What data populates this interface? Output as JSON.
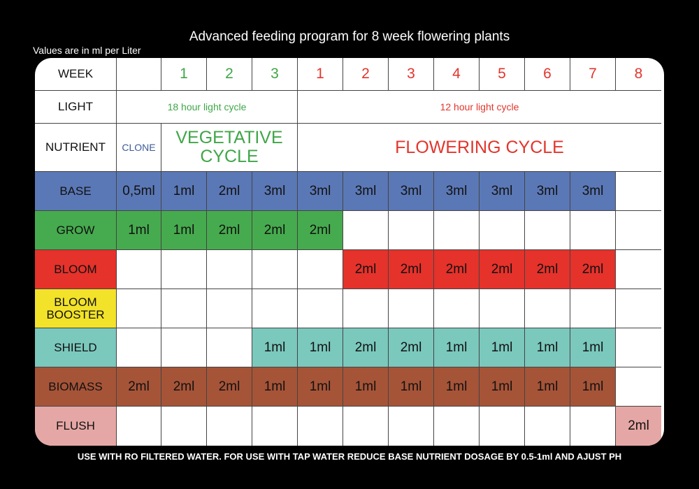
{
  "title": "Advanced feeding program for 8 week flowering plants",
  "subtitle": "Values  are in ml per Liter",
  "footer": "USE WITH RO FILTERED WATER. FOR USE WITH TAP WATER REDUCE BASE NUTRIENT DOSAGE BY 0.5-1ml AND AJUST PH",
  "header": {
    "week_label": "WEEK",
    "weeks": [
      "1",
      "2",
      "3",
      "1",
      "2",
      "3",
      "4",
      "5",
      "6",
      "7",
      "8"
    ],
    "light_label": "LIGHT",
    "light_veg": "18 hour light cycle",
    "light_flower": "12 hour light cycle",
    "nutrient_label": "NUTRIENT",
    "clone": "CLONE",
    "veg_cycle": "VEGETATIVE CYCLE",
    "flower_cycle": "FLOWERING CYCLE"
  },
  "colors": {
    "base": "#5b78b6",
    "grow": "#46ab4e",
    "bloom": "#e5322b",
    "bloom_booster": "#f2e229",
    "shield": "#7bc8bd",
    "biomass": "#a65438",
    "flush": "#e5a7a5"
  },
  "rows": [
    {
      "label": "BASE",
      "key": "base",
      "values": [
        "0,5ml",
        "1ml",
        "2ml",
        "3ml",
        "3ml",
        "3ml",
        "3ml",
        "3ml",
        "3ml",
        "3ml",
        "3ml",
        ""
      ]
    },
    {
      "label": "GROW",
      "key": "grow",
      "values": [
        "1ml",
        "1ml",
        "2ml",
        "2ml",
        "2ml",
        "",
        "",
        "",
        "",
        "",
        "",
        ""
      ]
    },
    {
      "label": "BLOOM",
      "key": "bloom",
      "values": [
        "",
        "",
        "",
        "",
        "",
        "2ml",
        "2ml",
        "2ml",
        "2ml",
        "2ml",
        "2ml",
        ""
      ]
    },
    {
      "label": "BLOOM BOOSTER",
      "key": "bloom_booster",
      "values": [
        "",
        "",
        "",
        "",
        "",
        "",
        "",
        "",
        "",
        "",
        "",
        ""
      ]
    },
    {
      "label": "SHIELD",
      "key": "shield",
      "values": [
        "",
        "",
        "",
        "1ml",
        "1ml",
        "2ml",
        "2ml",
        "1ml",
        "1ml",
        "1ml",
        "1ml",
        ""
      ]
    },
    {
      "label": "BIOMASS",
      "key": "biomass",
      "values": [
        "2ml",
        "2ml",
        "2ml",
        "1ml",
        "1ml",
        "1ml",
        "1ml",
        "1ml",
        "1ml",
        "1ml",
        "1ml",
        ""
      ]
    },
    {
      "label": "FLUSH",
      "key": "flush",
      "values": [
        "",
        "",
        "",
        "",
        "",
        "",
        "",
        "",
        "",
        "",
        "",
        "2ml"
      ]
    }
  ]
}
